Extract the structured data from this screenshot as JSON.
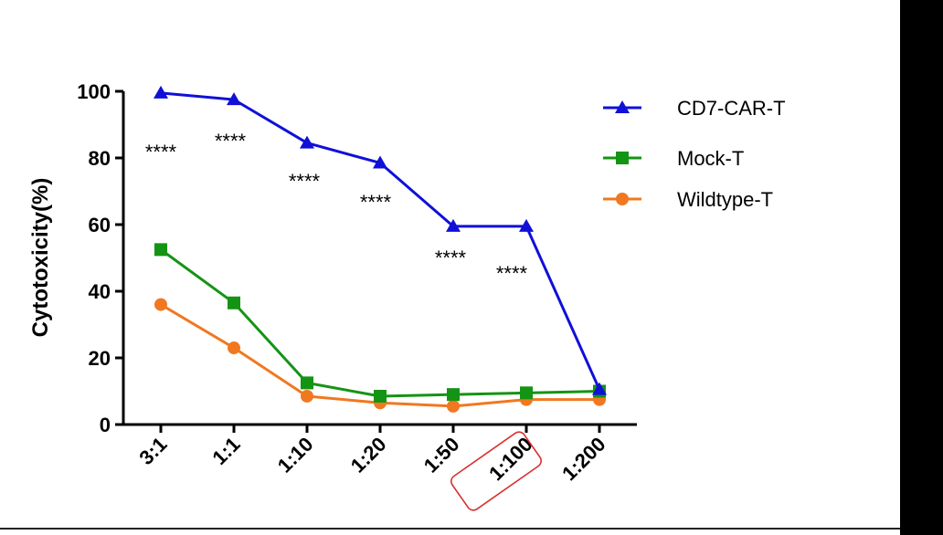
{
  "chart_data": {
    "type": "line",
    "title": "",
    "xlabel": "",
    "ylabel": "Cytotoxicity(%)",
    "categories": [
      "3:1",
      "1:1",
      "1:10",
      "1:20",
      "1:50",
      "1:100",
      "1:200"
    ],
    "highlighted_category": "1:100",
    "ylim": [
      0,
      100
    ],
    "yticks": [
      0,
      20,
      40,
      60,
      80,
      100
    ],
    "grid": false,
    "legend_position": "top-right",
    "series": [
      {
        "name": "CD7-CAR-T",
        "marker": "triangle",
        "color": "#1010d8",
        "values": [
          99.5,
          97.5,
          84.5,
          78.5,
          59.5,
          59.5,
          10.5
        ]
      },
      {
        "name": "Mock-T",
        "marker": "square",
        "color": "#149414",
        "values": [
          52.5,
          36.5,
          12.5,
          8.5,
          9,
          9.5,
          10
        ]
      },
      {
        "name": "Wildtype-T",
        "marker": "circle",
        "color": "#f07820",
        "values": [
          36,
          23,
          8.5,
          6.5,
          5.5,
          7.5,
          7.5
        ]
      }
    ],
    "annotations": [
      "****",
      "****",
      "****",
      "****",
      "****",
      "****"
    ]
  }
}
